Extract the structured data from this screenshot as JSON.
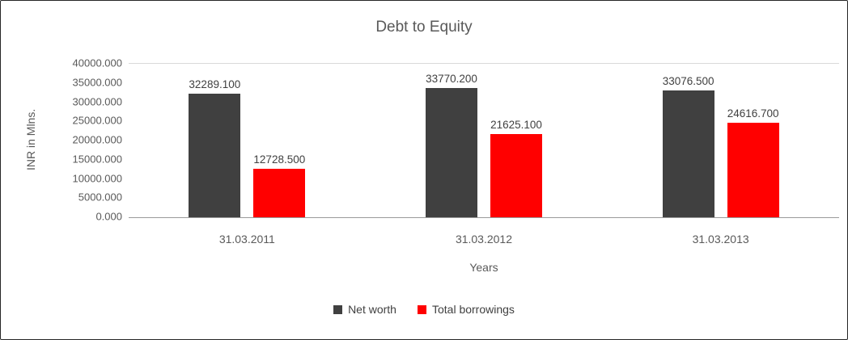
{
  "chart_data": {
    "type": "bar",
    "title": "Debt to Equity",
    "xlabel": "Years",
    "ylabel": "INR in Mlns.",
    "ylim": [
      0,
      40000
    ],
    "yticks": [
      "40000.000",
      "35000.000",
      "30000.000",
      "25000.000",
      "20000.000",
      "15000.000",
      "10000.000",
      "5000.000",
      "0.000"
    ],
    "categories": [
      "31.03.2011",
      "31.03.2012",
      "31.03.2013"
    ],
    "series": [
      {
        "name": "Net worth",
        "color": "#404040",
        "values": [
          32289.1,
          33770.2,
          33076.5
        ],
        "labels": [
          "32289.100",
          "33770.200",
          "33076.500"
        ]
      },
      {
        "name": "Total borrowings",
        "color": "#ff0000",
        "values": [
          12728.5,
          21625.1,
          24616.7
        ],
        "labels": [
          "12728.500",
          "21625.100",
          "24616.700"
        ]
      }
    ],
    "grid": "top-line-only",
    "legend_position": "bottom"
  }
}
